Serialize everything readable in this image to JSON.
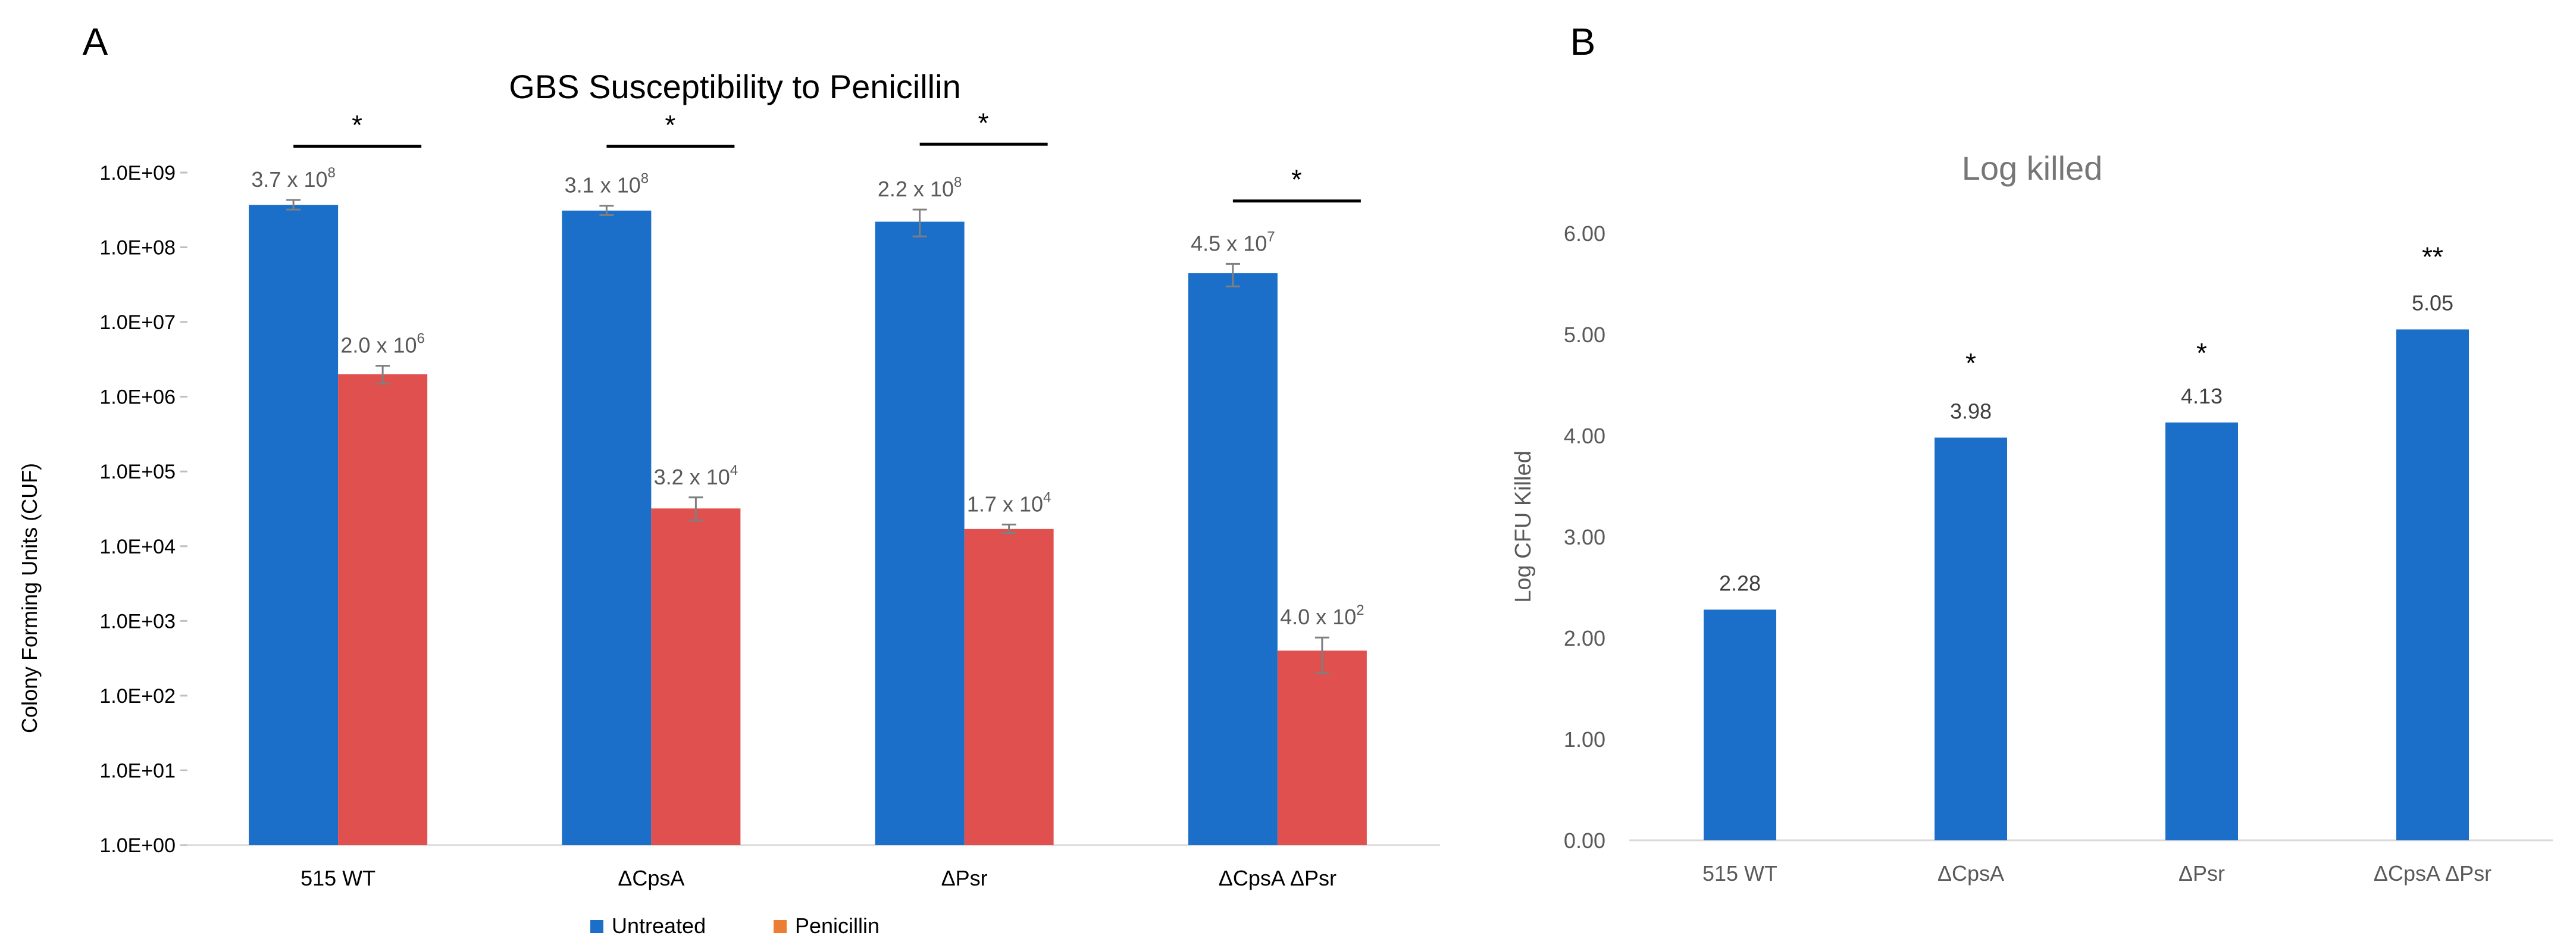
{
  "panels": {
    "a_letter": "A",
    "b_letter": "B"
  },
  "colors": {
    "untreated": "#1B6FC8",
    "penicillin": "#E0504E",
    "legend_penicillin": "#ED7D31",
    "axis_text": "#595959",
    "grid": "#D9D9D9"
  },
  "chart_data": [
    {
      "type": "bar",
      "scale": "log",
      "title": "GBS Susceptibility to Penicillin",
      "ylabel": "Colony Forming Units (CUF)",
      "xlabel": "",
      "categories": [
        "515 WT",
        "ΔCpsA",
        "ΔPsr",
        "ΔCpsA ΔPsr"
      ],
      "yticks": [
        "1.0E+00",
        "1.0E+01",
        "1.0E+02",
        "1.0E+03",
        "1.0E+04",
        "1.0E+05",
        "1.0E+06",
        "1.0E+07",
        "1.0E+08",
        "1.0E+09"
      ],
      "ylim_log10": [
        0,
        9
      ],
      "series": [
        {
          "name": "Untreated",
          "values": [
            370000000,
            310000000,
            220000000,
            45000000
          ],
          "err_low": [
            320000000,
            270000000,
            140000000,
            30000000
          ],
          "err_high": [
            430000000,
            360000000,
            320000000,
            60000000
          ],
          "labels": [
            {
              "mantissa": "3.7 x 10",
              "exp": "8"
            },
            {
              "mantissa": "3.1 x 10",
              "exp": "8"
            },
            {
              "mantissa": "2.2 x 10",
              "exp": "8"
            },
            {
              "mantissa": "4.5 x 10",
              "exp": "7"
            }
          ]
        },
        {
          "name": "Penicillin",
          "values": [
            2000000,
            32000,
            17000,
            400
          ],
          "err_low": [
            1500000,
            22000,
            15000,
            200
          ],
          "err_high": [
            2600000,
            45000,
            19500,
            600
          ],
          "labels": [
            {
              "mantissa": "2.0 x 10",
              "exp": "6"
            },
            {
              "mantissa": "3.2 x 10",
              "exp": "4"
            },
            {
              "mantissa": "1.7 x 10",
              "exp": "4"
            },
            {
              "mantissa": "4.0 x 10",
              "exp": "2"
            }
          ]
        }
      ],
      "significance": [
        {
          "symbol": "*",
          "bar_log10": 9.35
        },
        {
          "symbol": "*",
          "bar_log10": 9.35
        },
        {
          "symbol": "*",
          "bar_log10": 9.38
        },
        {
          "symbol": "*",
          "bar_log10": 8.62
        }
      ],
      "legend": [
        "Untreated",
        "Penicillin"
      ],
      "legend_position": "bottom"
    },
    {
      "type": "bar",
      "scale": "linear",
      "title": "Log killed",
      "ylabel": "Log CFU Killed",
      "xlabel": "",
      "categories": [
        "515 WT",
        "ΔCpsA",
        "ΔPsr",
        "ΔCpsA ΔPsr"
      ],
      "values": [
        2.28,
        3.98,
        4.13,
        5.05
      ],
      "value_labels": [
        "2.28",
        "3.98",
        "4.13",
        "5.05"
      ],
      "yticks": [
        "0.00",
        "1.00",
        "2.00",
        "3.00",
        "4.00",
        "5.00",
        "6.00"
      ],
      "ylim": [
        0,
        6
      ],
      "significance": [
        "",
        "*",
        "*",
        "**"
      ],
      "significance_y": [
        0,
        4.8,
        4.9,
        5.85
      ]
    }
  ]
}
